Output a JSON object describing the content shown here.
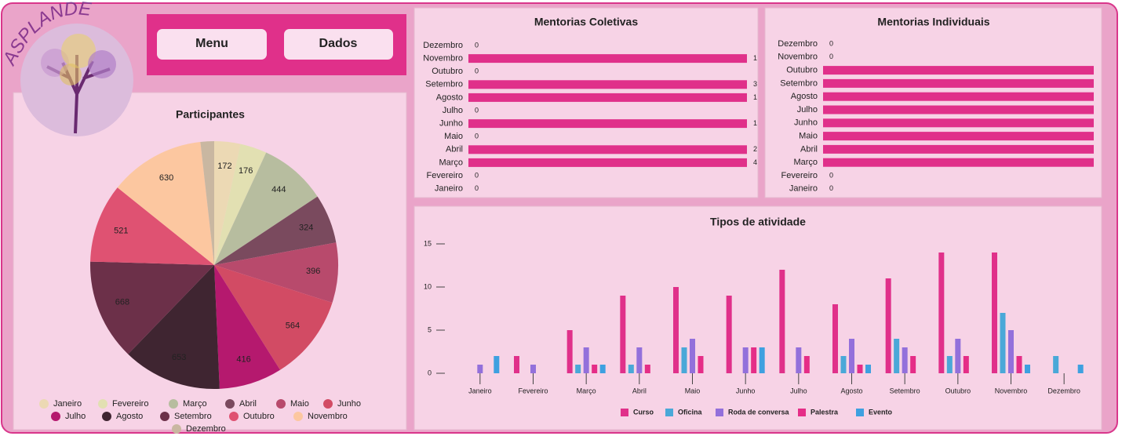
{
  "header": {
    "logo": "ASPLANDE",
    "buttons": [
      "Menu",
      "Dados"
    ]
  },
  "chart_data": [
    {
      "type": "pie",
      "title": "Participantes",
      "categories": [
        "Janeiro",
        "Fevereiro",
        "Março",
        "Abril",
        "Maio",
        "Junho",
        "Julho",
        "Agosto",
        "Setembro",
        "Outubro",
        "Novembro",
        "Dezembro"
      ],
      "values": [
        172,
        176,
        444,
        324,
        396,
        564,
        416,
        653,
        668,
        521,
        630,
        90
      ],
      "value_labels": [
        "172",
        "176",
        "444",
        "324",
        "396",
        "564",
        "416",
        "653",
        "668",
        "521",
        "630",
        null
      ],
      "colors": [
        "#ecd9b4",
        "#e2e0b2",
        "#b7bd9f",
        "#7a4a5e",
        "#b84a6c",
        "#d24b64",
        "#b5196e",
        "#3f2531",
        "#6c3049",
        "#df5272",
        "#fcc7a0",
        "#c9b7a1"
      ]
    },
    {
      "type": "hbar",
      "title": "Mentorias Coletivas",
      "categories": [
        "Dezembro",
        "Novembro",
        "Outubro",
        "Setembro",
        "Agosto",
        "Julho",
        "Junho",
        "Maio",
        "Abril",
        "Março",
        "Fevereiro",
        "Janeiro"
      ],
      "values": [
        0,
        1,
        0,
        3,
        1,
        0,
        1,
        0,
        2,
        4,
        0,
        0
      ],
      "value_labels": [
        "0",
        "1",
        "0",
        "3",
        "1",
        "0",
        "1",
        "0",
        "2",
        "4",
        "0",
        "0"
      ],
      "color": "#e0308a",
      "xlim": [
        0,
        1
      ]
    },
    {
      "type": "hbar",
      "title": "Mentorias Individuais",
      "categories": [
        "Dezembro",
        "Novembro",
        "Outubro",
        "Setembro",
        "Agosto",
        "Julho",
        "Junho",
        "Maio",
        "Abril",
        "Março",
        "Fevereiro",
        "Janeiro"
      ],
      "values": [
        0,
        0,
        1,
        1,
        1,
        1,
        1,
        1,
        1,
        1,
        0,
        0
      ],
      "value_labels": [
        "0",
        "0",
        null,
        null,
        null,
        null,
        null,
        null,
        null,
        null,
        "0",
        "0"
      ],
      "color": "#e0308a",
      "xlim": [
        0,
        1
      ]
    },
    {
      "type": "bar",
      "title": "Tipos de atividade",
      "categories": [
        "Janeiro",
        "Fevereiro",
        "Março",
        "Abril",
        "Maio",
        "Junho",
        "Julho",
        "Agosto",
        "Setembro",
        "Outubro",
        "Novembro",
        "Dezembro"
      ],
      "series": [
        {
          "name": "Curso",
          "color": "#e0308a",
          "values": [
            0,
            2,
            5,
            9,
            10,
            9,
            12,
            8,
            11,
            14,
            14,
            0
          ]
        },
        {
          "name": "Oficina",
          "color": "#4aa8d8",
          "values": [
            0,
            0,
            1,
            1,
            3,
            0,
            0,
            2,
            4,
            2,
            7,
            2
          ]
        },
        {
          "name": "Roda de conversa",
          "color": "#9370db",
          "values": [
            1,
            1,
            3,
            3,
            4,
            3,
            3,
            4,
            3,
            4,
            5,
            0
          ]
        },
        {
          "name": "Palestra",
          "color": "#e52d87",
          "values": [
            0,
            0,
            1,
            1,
            2,
            3,
            2,
            1,
            2,
            2,
            2,
            0
          ]
        },
        {
          "name": "Evento",
          "color": "#3ea0e0",
          "values": [
            2,
            0,
            1,
            0,
            0,
            3,
            0,
            1,
            0,
            0,
            1,
            1
          ]
        }
      ],
      "ylim": [
        0,
        16
      ],
      "yticks": [
        0,
        5,
        10,
        15
      ]
    }
  ]
}
